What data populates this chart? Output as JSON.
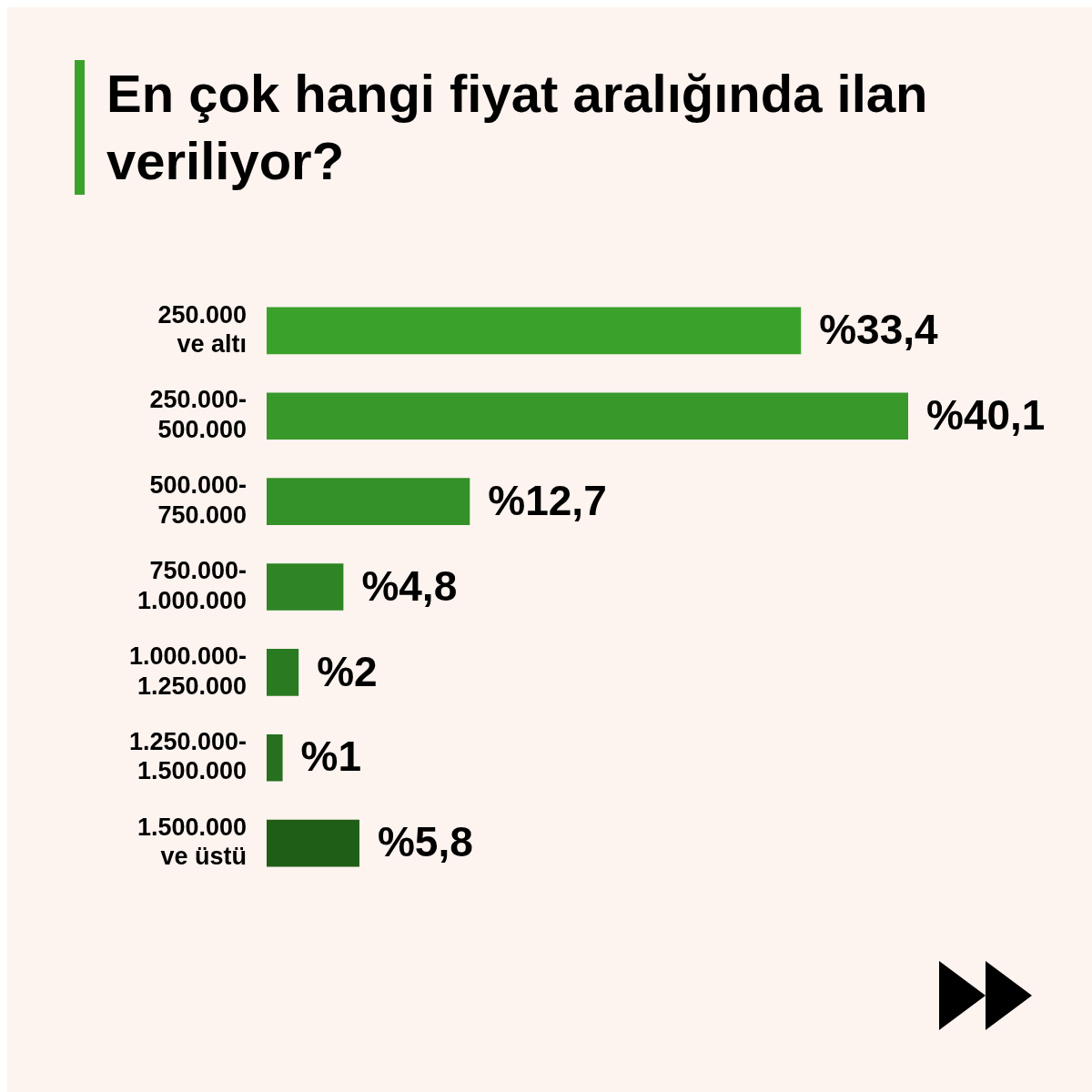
{
  "chart_data": {
    "type": "bar",
    "orientation": "horizontal",
    "title": "En çok hangi fiyat aralığında ilan veriliyor?",
    "categories": [
      "250.000 ve altı",
      "250.000-500.000",
      "500.000-750.000",
      "750.000-1.000.000",
      "1.000.000-1.250.000",
      "1.250.000-1.500.000",
      "1.500.000 ve üstü"
    ],
    "values": [
      33.4,
      40.1,
      12.7,
      4.8,
      2,
      1,
      5.8
    ],
    "colors": [
      "#3aa22b",
      "#38992a",
      "#349028",
      "#2f8525",
      "#2a7a22",
      "#26701f",
      "#1f5e17"
    ],
    "value_labels": [
      "%33,4",
      "%40,1",
      "%12,7",
      "%4,8",
      "%2",
      "%1",
      "%5,8"
    ],
    "legend": false
  }
}
